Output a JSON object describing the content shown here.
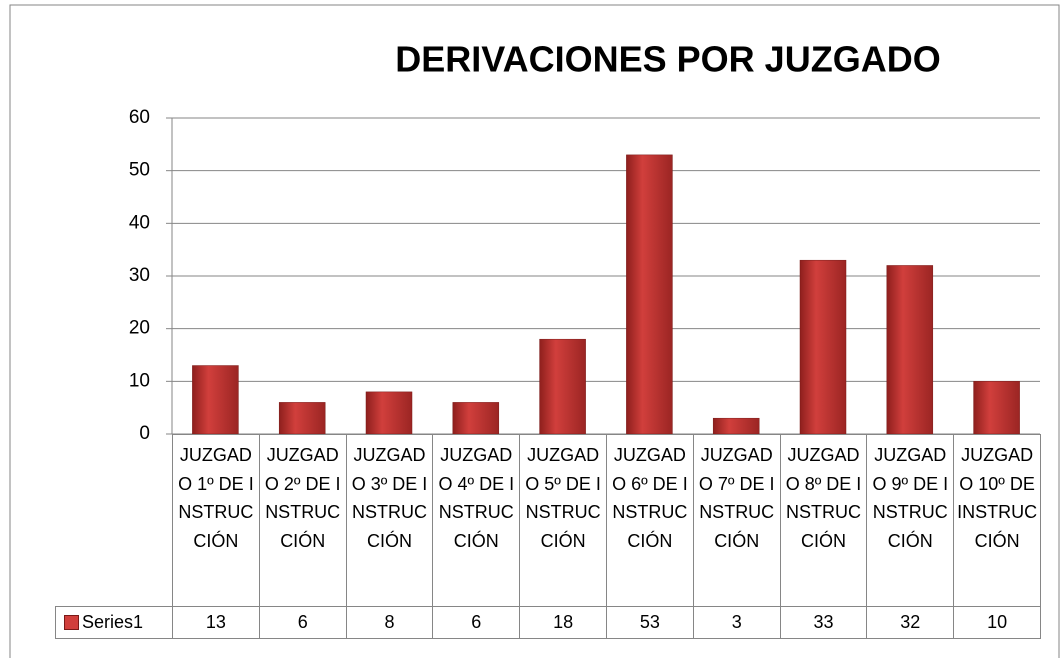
{
  "chart_data": {
    "type": "bar",
    "title": "DERIVACIONES POR JUZGADO",
    "categories": [
      "JUZGADO 1º DE INSTRUCCIÓN",
      "JUZGADO 2º DE INSTRUCCIÓN",
      "JUZGADO 3º DE INSTRUCCIÓN",
      "JUZGADO 4º DE INSTRUCCIÓN",
      "JUZGADO 5º DE INSTRUCCIÓN",
      "JUZGADO 6º DE INSTRUCCIÓN",
      "JUZGADO 7º DE INSTRUCCIÓN",
      "JUZGADO 8º DE INSTRUCCIÓN",
      "JUZGADO 9º DE INSTRUCCIÓN",
      "JUZGADO 10º DE INSTRUCCIÓN"
    ],
    "series": [
      {
        "name": "Series1",
        "color": "#d13f3c",
        "values": [
          13,
          6,
          8,
          6,
          18,
          53,
          3,
          33,
          32,
          10
        ]
      }
    ],
    "ylim": [
      0,
      60
    ],
    "yticks": [
      0,
      10,
      20,
      30,
      40,
      50,
      60
    ],
    "grid": true
  }
}
